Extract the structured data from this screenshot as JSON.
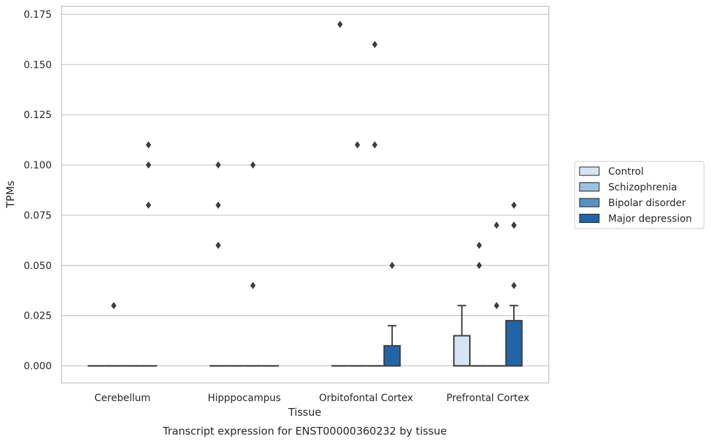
{
  "chart_data": {
    "type": "box",
    "title": "Transcript expression for ENST00000360232 by tissue",
    "xlabel": "Tissue",
    "ylabel": "TPMs",
    "ylim": [
      -0.0085,
      0.179
    ],
    "yticks": [
      0.0,
      0.025,
      0.05,
      0.075,
      0.1,
      0.125,
      0.15,
      0.175
    ],
    "ytick_labels": [
      "0.000",
      "0.025",
      "0.050",
      "0.075",
      "0.100",
      "0.125",
      "0.150",
      "0.175"
    ],
    "grid": "horizontal",
    "legend_position": "right",
    "categories": [
      "Cerebellum",
      "Hipppocampus",
      "Orbitofontal Cortex",
      "Prefrontal Cortex"
    ],
    "series": [
      {
        "name": "Control",
        "color": "#d5e3f2",
        "boxes": [
          {
            "q1": 0,
            "median": 0,
            "q3": 0,
            "whisker_low": 0,
            "whisker_high": 0,
            "outliers": []
          },
          {
            "q1": 0,
            "median": 0,
            "q3": 0,
            "whisker_low": 0,
            "whisker_high": 0,
            "outliers": [
              0.06,
              0.08,
              0.1
            ]
          },
          {
            "q1": 0,
            "median": 0,
            "q3": 0,
            "whisker_low": 0,
            "whisker_high": 0,
            "outliers": [
              0.17
            ]
          },
          {
            "q1": 0,
            "median": 0,
            "q3": 0.015,
            "whisker_low": 0,
            "whisker_high": 0.03,
            "outliers": []
          }
        ]
      },
      {
        "name": "Schizophrenia",
        "color": "#9cc2dd",
        "boxes": [
          {
            "q1": 0,
            "median": 0,
            "q3": 0,
            "whisker_low": 0,
            "whisker_high": 0,
            "outliers": [
              0.03
            ]
          },
          {
            "q1": 0,
            "median": 0,
            "q3": 0,
            "whisker_low": 0,
            "whisker_high": 0,
            "outliers": []
          },
          {
            "q1": 0,
            "median": 0,
            "q3": 0,
            "whisker_low": 0,
            "whisker_high": 0,
            "outliers": [
              0.11
            ]
          },
          {
            "q1": 0,
            "median": 0,
            "q3": 0,
            "whisker_low": 0,
            "whisker_high": 0,
            "outliers": [
              0.05,
              0.06
            ]
          }
        ]
      },
      {
        "name": "Bipolar disorder",
        "color": "#5592c0",
        "boxes": [
          {
            "q1": 0,
            "median": 0,
            "q3": 0,
            "whisker_low": 0,
            "whisker_high": 0,
            "outliers": []
          },
          {
            "q1": 0,
            "median": 0,
            "q3": 0,
            "whisker_low": 0,
            "whisker_high": 0,
            "outliers": [
              0.04,
              0.1
            ]
          },
          {
            "q1": 0,
            "median": 0,
            "q3": 0,
            "whisker_low": 0,
            "whisker_high": 0,
            "outliers": [
              0.11,
              0.16
            ]
          },
          {
            "q1": 0,
            "median": 0,
            "q3": 0,
            "whisker_low": 0,
            "whisker_high": 0,
            "outliers": [
              0.03,
              0.07
            ]
          }
        ]
      },
      {
        "name": "Major depression",
        "color": "#2265a7",
        "boxes": [
          {
            "q1": 0,
            "median": 0,
            "q3": 0,
            "whisker_low": 0,
            "whisker_high": 0,
            "outliers": [
              0.08,
              0.1,
              0.11
            ]
          },
          {
            "q1": 0,
            "median": 0,
            "q3": 0,
            "whisker_low": 0,
            "whisker_high": 0,
            "outliers": []
          },
          {
            "q1": 0,
            "median": 0,
            "q3": 0.01,
            "whisker_low": 0,
            "whisker_high": 0.02,
            "outliers": [
              0.05
            ]
          },
          {
            "q1": 0,
            "median": 0,
            "q3": 0.0225,
            "whisker_low": 0,
            "whisker_high": 0.03,
            "outliers": [
              0.04
            ]
          }
        ]
      }
    ],
    "extra_outliers": [
      {
        "category_index": 3,
        "series_index": 3,
        "value": 0.07
      },
      {
        "category_index": 3,
        "series_index": 3,
        "value": 0.08
      },
      {
        "category_index": 3,
        "series_index": 3,
        "value": 0.07
      }
    ]
  }
}
